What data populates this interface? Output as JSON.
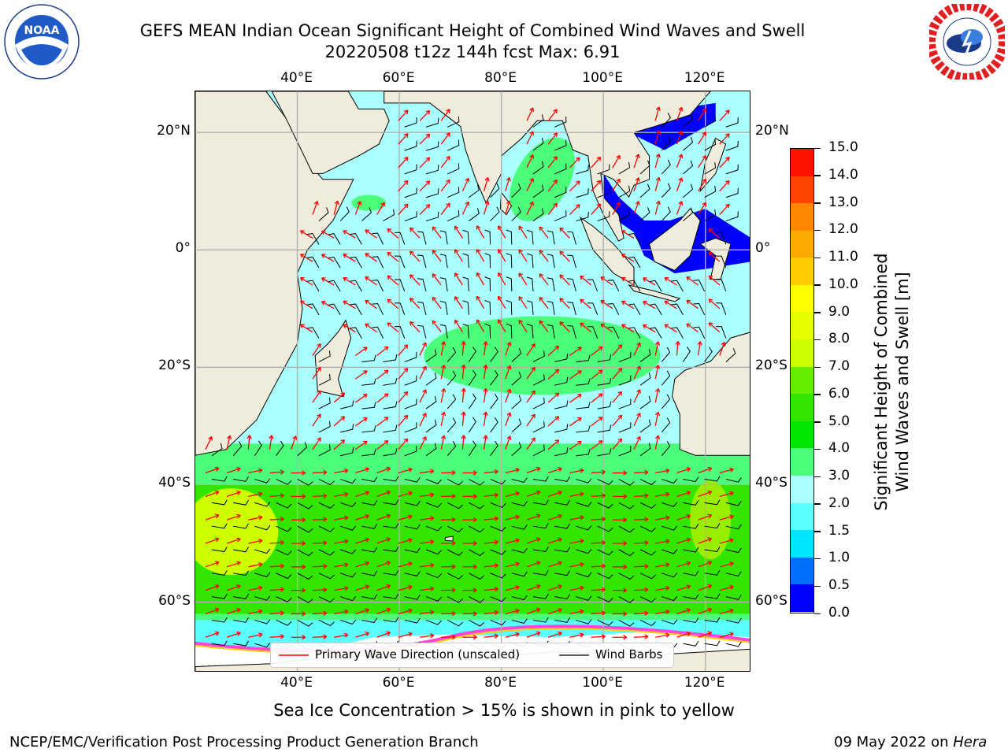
{
  "header": {
    "title_line1": "GEFS MEAN Indian Ocean Significant Height of Combined Wind Waves and Swell",
    "title_line2": "20220508 t12z 144h fcst   Max: 6.91"
  },
  "logos": {
    "left": {
      "name": "NOAA",
      "text": "NOAA",
      "ring_text": "NATIONAL OCEANIC AND ATMOSPHERIC ADMINISTRATION · U.S. DEPARTMENT OF COMMERCE"
    },
    "right": {
      "name": "National Weather Service",
      "ring_text": "NATIONAL WEATHER SERVICE"
    }
  },
  "map": {
    "lon_ticks": [
      "40°E",
      "60°E",
      "80°E",
      "100°E",
      "120°E"
    ],
    "lat_ticks": [
      "20°N",
      "0°",
      "20°S",
      "40°S",
      "60°S"
    ],
    "extent": {
      "lon": [
        20,
        129
      ],
      "lat": [
        -72,
        27
      ]
    },
    "colors": {
      "land": "#efecdc",
      "ice_free_ocean": "#ffffff",
      "grid": "#b0b0b0",
      "arrows": "#ff0000",
      "barbs": "#000000"
    }
  },
  "legend": {
    "items": [
      {
        "label": "Primary Wave Direction (unscaled)",
        "color": "#ff0000"
      },
      {
        "label": "Wind Barbs",
        "color": "#000000"
      }
    ]
  },
  "colorbar": {
    "label_line1": "Significant Height of Combined",
    "label_line2": "Wind Waves and Swell [m]",
    "ticks": [
      "0.0",
      "0.5",
      "1.0",
      "1.5",
      "2.0",
      "3.0",
      "4.0",
      "5.0",
      "6.0",
      "7.0",
      "8.0",
      "9.0",
      "10.0",
      "11.0",
      "12.0",
      "13.0",
      "14.0",
      "15.0"
    ],
    "colors": [
      "#0000ff",
      "#0070ff",
      "#00e5ff",
      "#5cffff",
      "#aaffff",
      "#4cff7a",
      "#00e600",
      "#33e600",
      "#66ee00",
      "#ccff00",
      "#e5ff00",
      "#ffff00",
      "#ffcc00",
      "#ffaa00",
      "#ff8800",
      "#ff4400",
      "#ff1100"
    ]
  },
  "captions": {
    "sea_ice_note": "Sea Ice Concentration > 15% is shown in pink to yellow",
    "footer_left": "NCEP/EMC/Verification Post Processing Product Generation Branch",
    "footer_date": "09 May 2022 on ",
    "footer_host": "Hera"
  }
}
